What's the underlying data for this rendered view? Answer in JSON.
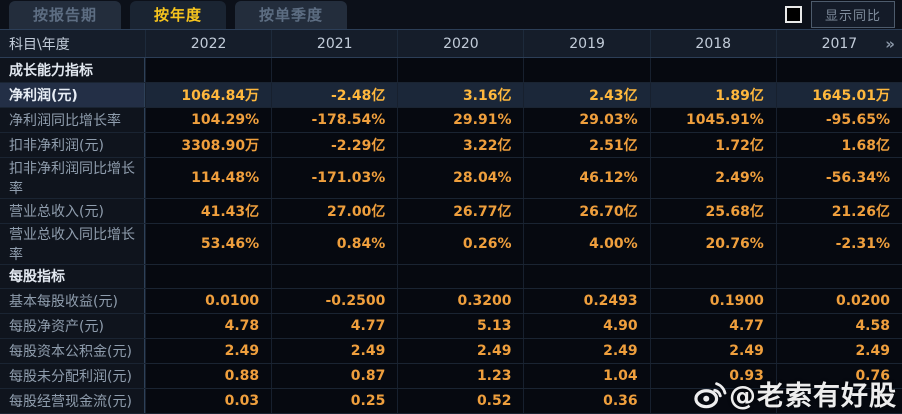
{
  "tabs": [
    {
      "label": "按报告期",
      "active": false
    },
    {
      "label": "按年度",
      "active": true
    },
    {
      "label": "按单季度",
      "active": false
    }
  ],
  "controls": {
    "show_yoy_label": "显示同比",
    "show_yoy_checked": false
  },
  "header": {
    "columns": [
      "科目\\年度",
      "2022",
      "2021",
      "2020",
      "2019",
      "2018",
      "2017"
    ],
    "more_label": "»"
  },
  "table": {
    "rows": [
      {
        "type": "section",
        "label": "成长能力指标",
        "values": [
          "",
          "",
          "",
          "",
          "",
          ""
        ]
      },
      {
        "type": "highlight",
        "label": "净利润(元)",
        "values": [
          "1064.84万",
          "-2.48亿",
          "3.16亿",
          "2.43亿",
          "1.89亿",
          "1645.01万"
        ]
      },
      {
        "type": "data",
        "label": "净利润同比增长率",
        "values": [
          "104.29%",
          "-178.54%",
          "29.91%",
          "29.03%",
          "1045.91%",
          "-95.65%"
        ]
      },
      {
        "type": "data",
        "label": "扣非净利润(元)",
        "values": [
          "3308.90万",
          "-2.29亿",
          "3.22亿",
          "2.51亿",
          "1.72亿",
          "1.68亿"
        ]
      },
      {
        "type": "data",
        "label": "扣非净利润同比增长率",
        "values": [
          "114.48%",
          "-171.03%",
          "28.04%",
          "46.12%",
          "2.49%",
          "-56.34%"
        ]
      },
      {
        "type": "data",
        "label": "营业总收入(元)",
        "values": [
          "41.43亿",
          "27.00亿",
          "26.77亿",
          "26.70亿",
          "25.68亿",
          "21.26亿"
        ]
      },
      {
        "type": "data",
        "label": "营业总收入同比增长率",
        "values": [
          "53.46%",
          "0.84%",
          "0.26%",
          "4.00%",
          "20.76%",
          "-2.31%"
        ]
      },
      {
        "type": "section",
        "label": "每股指标",
        "values": [
          "",
          "",
          "",
          "",
          "",
          ""
        ]
      },
      {
        "type": "data",
        "label": "基本每股收益(元)",
        "values": [
          "0.0100",
          "-0.2500",
          "0.3200",
          "0.2493",
          "0.1900",
          "0.0200"
        ]
      },
      {
        "type": "data",
        "label": "每股净资产(元)",
        "values": [
          "4.78",
          "4.77",
          "5.13",
          "4.90",
          "4.77",
          "4.58"
        ]
      },
      {
        "type": "data",
        "label": "每股资本公积金(元)",
        "values": [
          "2.49",
          "2.49",
          "2.49",
          "2.49",
          "2.49",
          "2.49"
        ]
      },
      {
        "type": "data",
        "label": "每股未分配利润(元)",
        "values": [
          "0.88",
          "0.87",
          "1.23",
          "1.04",
          "0.93",
          "0.76"
        ]
      },
      {
        "type": "data",
        "label": "每股经营现金流(元)",
        "values": [
          "0.03",
          "0.25",
          "0.52",
          "0.36",
          "",
          ""
        ]
      }
    ]
  },
  "watermark": {
    "icon": "weibo-icon",
    "text": "@老索有好股"
  },
  "colors": {
    "background": "#0a0e15",
    "tab_active_text": "#f7c51e",
    "tab_inactive_text": "#5d6d82",
    "header_text": "#c2ccd9",
    "row_label_text": "#8f9dad",
    "section_text": "#e2e8f0",
    "value_text": "#ef9f3d",
    "highlight_value_text": "#ffb83d",
    "highlight_row_bg": "#1b2739",
    "grid_line": "#1a2432"
  }
}
